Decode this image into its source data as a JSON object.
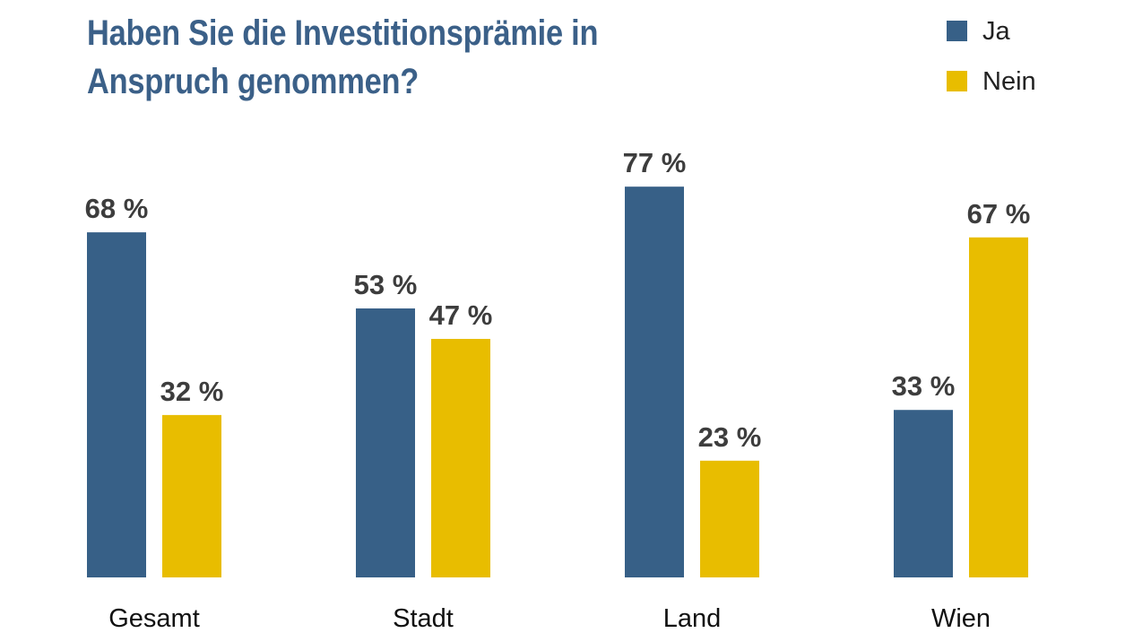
{
  "chart_data": {
    "type": "bar",
    "title": "Haben Sie die Investitionsprämie in Anspruch genommen?",
    "title_lines": [
      "Haben Sie die Investitionsprämie in",
      "Anspruch genommen?"
    ],
    "categories": [
      "Gesamt",
      "Stadt",
      "Land",
      "Wien"
    ],
    "series": [
      {
        "name": "Ja",
        "color": "#376087",
        "values": [
          68,
          53,
          77,
          33
        ],
        "labels": [
          "68 %",
          "53 %",
          "77 %",
          "33 %"
        ]
      },
      {
        "name": "Nein",
        "color": "#e8bd00",
        "values": [
          32,
          47,
          23,
          67
        ],
        "labels": [
          "32 %",
          "47 %",
          "23 %",
          "67 %"
        ]
      }
    ],
    "ylim": [
      0,
      100
    ],
    "grid": false,
    "legend_position": "top-right",
    "title_color": "#3b6088"
  }
}
